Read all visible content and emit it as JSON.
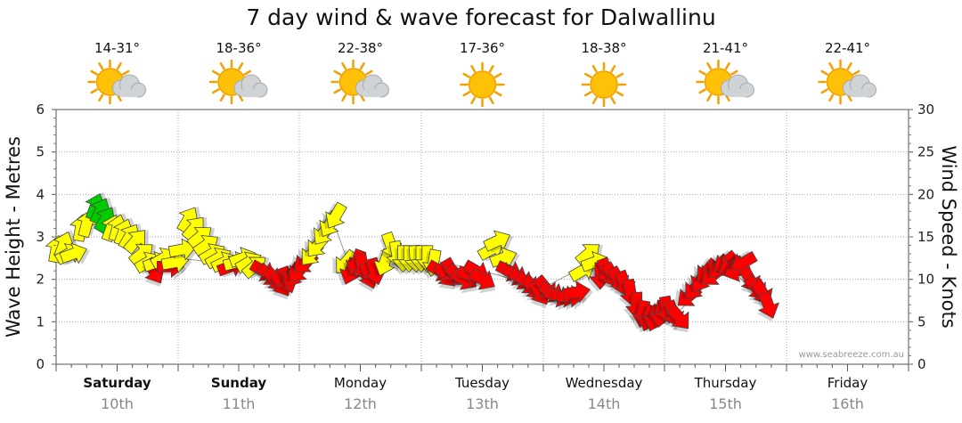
{
  "chart_data": {
    "type": "scatter",
    "title": "7 day wind & wave forecast for Dalwallinu",
    "ylabel_left": "Wave Height - Metres",
    "ylabel_right": "Wind Speed - Knots",
    "y_left_range": [
      0,
      6
    ],
    "y_left_ticks": [
      "0",
      "1",
      "2",
      "3",
      "4",
      "5",
      "6"
    ],
    "y_right_range": [
      0,
      30
    ],
    "y_right_ticks": [
      "0",
      "5",
      "10",
      "15",
      "20",
      "25",
      "30"
    ],
    "grid": true,
    "watermark": "www.seabreeze.com.au",
    "days": [
      {
        "name": "Saturday",
        "date": "10th",
        "bold": true,
        "temp": "14-31°",
        "weather": "partly-cloudy"
      },
      {
        "name": "Sunday",
        "date": "11th",
        "bold": true,
        "temp": "18-36°",
        "weather": "partly-cloudy"
      },
      {
        "name": "Monday",
        "date": "12th",
        "bold": false,
        "temp": "22-38°",
        "weather": "partly-cloudy"
      },
      {
        "name": "Tuesday",
        "date": "13th",
        "bold": false,
        "temp": "17-36°",
        "weather": "sunny"
      },
      {
        "name": "Wednesday",
        "date": "14th",
        "bold": false,
        "temp": "18-38°",
        "weather": "sunny"
      },
      {
        "name": "Thursday",
        "date": "15th",
        "bold": false,
        "temp": "21-41°",
        "weather": "partly-cloudy"
      },
      {
        "name": "Friday",
        "date": "16th",
        "bold": false,
        "temp": "22-41°",
        "weather": "partly-cloudy"
      }
    ],
    "wind_legend": {
      "light": "#ffff00",
      "moderate": "#00cc00",
      "strong": "#ff0000"
    },
    "wind_series": [
      {
        "t": 0.0,
        "kn": 13.5,
        "dir": 190,
        "c": "yellow"
      },
      {
        "t": 0.06,
        "kn": 14.0,
        "dir": 200,
        "c": "yellow"
      },
      {
        "t": 0.1,
        "kn": 13.0,
        "dir": 240,
        "c": "yellow"
      },
      {
        "t": 0.14,
        "kn": 13.0,
        "dir": 250,
        "c": "yellow"
      },
      {
        "t": 0.2,
        "kn": 16.0,
        "dir": 190,
        "c": "yellow"
      },
      {
        "t": 0.25,
        "kn": 16.5,
        "dir": 195,
        "c": "yellow"
      },
      {
        "t": 0.32,
        "kn": 18.5,
        "dir": 200,
        "c": "green"
      },
      {
        "t": 0.36,
        "kn": 18.0,
        "dir": 205,
        "c": "green"
      },
      {
        "t": 0.4,
        "kn": 17.0,
        "dir": 210,
        "c": "green"
      },
      {
        "t": 0.45,
        "kn": 16.0,
        "dir": 200,
        "c": "yellow"
      },
      {
        "t": 0.5,
        "kn": 16.0,
        "dir": 195,
        "c": "yellow"
      },
      {
        "t": 0.55,
        "kn": 15.5,
        "dir": 200,
        "c": "yellow"
      },
      {
        "t": 0.6,
        "kn": 15.0,
        "dir": 210,
        "c": "yellow"
      },
      {
        "t": 0.65,
        "kn": 14.5,
        "dir": 220,
        "c": "yellow"
      },
      {
        "t": 0.7,
        "kn": 13.0,
        "dir": 230,
        "c": "yellow"
      },
      {
        "t": 0.75,
        "kn": 12.0,
        "dir": 240,
        "c": "yellow"
      },
      {
        "t": 0.8,
        "kn": 11.0,
        "dir": 330,
        "c": "red"
      },
      {
        "t": 0.82,
        "kn": 12.0,
        "dir": 250,
        "c": "yellow"
      },
      {
        "t": 0.88,
        "kn": 12.5,
        "dir": 240,
        "c": "yellow"
      },
      {
        "t": 0.93,
        "kn": 11.5,
        "dir": 270,
        "c": "red"
      },
      {
        "t": 0.97,
        "kn": 12.0,
        "dir": 260,
        "c": "yellow"
      },
      {
        "t": 1.03,
        "kn": 13.5,
        "dir": 260,
        "c": "yellow"
      },
      {
        "t": 1.08,
        "kn": 17.0,
        "dir": 210,
        "c": "yellow"
      },
      {
        "t": 1.13,
        "kn": 16.0,
        "dir": 220,
        "c": "yellow"
      },
      {
        "t": 1.18,
        "kn": 15.0,
        "dir": 230,
        "c": "yellow"
      },
      {
        "t": 1.23,
        "kn": 14.0,
        "dir": 235,
        "c": "yellow"
      },
      {
        "t": 1.28,
        "kn": 13.0,
        "dir": 240,
        "c": "yellow"
      },
      {
        "t": 1.33,
        "kn": 12.5,
        "dir": 240,
        "c": "yellow"
      },
      {
        "t": 1.38,
        "kn": 12.0,
        "dir": 245,
        "c": "yellow"
      },
      {
        "t": 1.43,
        "kn": 11.5,
        "dir": 250,
        "c": "red"
      },
      {
        "t": 1.48,
        "kn": 12.0,
        "dir": 255,
        "c": "yellow"
      },
      {
        "t": 1.53,
        "kn": 12.5,
        "dir": 250,
        "c": "yellow"
      },
      {
        "t": 1.58,
        "kn": 12.0,
        "dir": 240,
        "c": "yellow"
      },
      {
        "t": 1.63,
        "kn": 11.5,
        "dir": 230,
        "c": "yellow"
      },
      {
        "t": 1.7,
        "kn": 11.0,
        "dir": 300,
        "c": "red"
      },
      {
        "t": 1.75,
        "kn": 10.5,
        "dir": 310,
        "c": "red"
      },
      {
        "t": 1.8,
        "kn": 10.0,
        "dir": 320,
        "c": "red"
      },
      {
        "t": 1.85,
        "kn": 9.5,
        "dir": 330,
        "c": "red"
      },
      {
        "t": 1.9,
        "kn": 10.0,
        "dir": 340,
        "c": "red"
      },
      {
        "t": 1.95,
        "kn": 10.5,
        "dir": 30,
        "c": "red"
      },
      {
        "t": 2.0,
        "kn": 11.0,
        "dir": 40,
        "c": "red"
      },
      {
        "t": 2.05,
        "kn": 12.0,
        "dir": 50,
        "c": "red"
      },
      {
        "t": 2.1,
        "kn": 13.0,
        "dir": 40,
        "c": "yellow"
      },
      {
        "t": 2.15,
        "kn": 14.0,
        "dir": 40,
        "c": "yellow"
      },
      {
        "t": 2.2,
        "kn": 15.5,
        "dir": 35,
        "c": "yellow"
      },
      {
        "t": 2.25,
        "kn": 16.5,
        "dir": 30,
        "c": "yellow"
      },
      {
        "t": 2.3,
        "kn": 17.5,
        "dir": 30,
        "c": "yellow"
      },
      {
        "t": 2.38,
        "kn": 12.0,
        "dir": 40,
        "c": "yellow"
      },
      {
        "t": 2.42,
        "kn": 11.0,
        "dir": 20,
        "c": "red"
      },
      {
        "t": 2.47,
        "kn": 12.0,
        "dir": 20,
        "c": "red"
      },
      {
        "t": 2.52,
        "kn": 11.5,
        "dir": 350,
        "c": "red"
      },
      {
        "t": 2.57,
        "kn": 10.5,
        "dir": 340,
        "c": "red"
      },
      {
        "t": 2.62,
        "kn": 11.0,
        "dir": 345,
        "c": "red"
      },
      {
        "t": 2.7,
        "kn": 12.0,
        "dir": 20,
        "c": "yellow"
      },
      {
        "t": 2.75,
        "kn": 14.0,
        "dir": 340,
        "c": "yellow"
      },
      {
        "t": 2.8,
        "kn": 13.0,
        "dir": 350,
        "c": "yellow"
      },
      {
        "t": 2.85,
        "kn": 12.5,
        "dir": 0,
        "c": "yellow"
      },
      {
        "t": 2.9,
        "kn": 12.5,
        "dir": 0,
        "c": "yellow"
      },
      {
        "t": 2.95,
        "kn": 12.5,
        "dir": 355,
        "c": "yellow"
      },
      {
        "t": 3.0,
        "kn": 12.5,
        "dir": 0,
        "c": "yellow"
      },
      {
        "t": 3.05,
        "kn": 12.5,
        "dir": 0,
        "c": "yellow"
      },
      {
        "t": 3.1,
        "kn": 12.0,
        "dir": 10,
        "c": "yellow"
      },
      {
        "t": 3.15,
        "kn": 11.0,
        "dir": 300,
        "c": "red"
      },
      {
        "t": 3.2,
        "kn": 10.5,
        "dir": 320,
        "c": "red"
      },
      {
        "t": 3.25,
        "kn": 11.0,
        "dir": 330,
        "c": "red"
      },
      {
        "t": 3.3,
        "kn": 10.5,
        "dir": 310,
        "c": "red"
      },
      {
        "t": 3.35,
        "kn": 10.0,
        "dir": 300,
        "c": "red"
      },
      {
        "t": 3.4,
        "kn": 10.5,
        "dir": 290,
        "c": "red"
      },
      {
        "t": 3.45,
        "kn": 11.0,
        "dir": 300,
        "c": "red"
      },
      {
        "t": 3.5,
        "kn": 10.0,
        "dir": 300,
        "c": "red"
      },
      {
        "t": 3.57,
        "kn": 13.5,
        "dir": 240,
        "c": "yellow"
      },
      {
        "t": 3.62,
        "kn": 14.5,
        "dir": 245,
        "c": "yellow"
      },
      {
        "t": 3.67,
        "kn": 12.5,
        "dir": 250,
        "c": "yellow"
      },
      {
        "t": 3.72,
        "kn": 11.0,
        "dir": 295,
        "c": "red"
      },
      {
        "t": 3.77,
        "kn": 10.5,
        "dir": 300,
        "c": "red"
      },
      {
        "t": 3.82,
        "kn": 10.0,
        "dir": 305,
        "c": "red"
      },
      {
        "t": 3.87,
        "kn": 9.5,
        "dir": 310,
        "c": "red"
      },
      {
        "t": 3.92,
        "kn": 9.0,
        "dir": 320,
        "c": "red"
      },
      {
        "t": 3.97,
        "kn": 8.5,
        "dir": 330,
        "c": "red"
      },
      {
        "t": 4.02,
        "kn": 9.0,
        "dir": 320,
        "c": "red"
      },
      {
        "t": 4.07,
        "kn": 8.5,
        "dir": 300,
        "c": "red"
      },
      {
        "t": 4.12,
        "kn": 8.0,
        "dir": 290,
        "c": "red"
      },
      {
        "t": 4.17,
        "kn": 8.0,
        "dir": 280,
        "c": "red"
      },
      {
        "t": 4.22,
        "kn": 8.0,
        "dir": 270,
        "c": "red"
      },
      {
        "t": 4.27,
        "kn": 8.5,
        "dir": 260,
        "c": "red"
      },
      {
        "t": 4.32,
        "kn": 11.0,
        "dir": 240,
        "c": "yellow"
      },
      {
        "t": 4.37,
        "kn": 13.0,
        "dir": 230,
        "c": "yellow"
      },
      {
        "t": 4.42,
        "kn": 12.0,
        "dir": 250,
        "c": "yellow"
      },
      {
        "t": 4.47,
        "kn": 10.5,
        "dir": 0,
        "c": "red"
      },
      {
        "t": 4.52,
        "kn": 11.0,
        "dir": 340,
        "c": "red"
      },
      {
        "t": 4.57,
        "kn": 10.5,
        "dir": 330,
        "c": "red"
      },
      {
        "t": 4.62,
        "kn": 10.0,
        "dir": 330,
        "c": "red"
      },
      {
        "t": 4.67,
        "kn": 9.5,
        "dir": 340,
        "c": "red"
      },
      {
        "t": 4.72,
        "kn": 8.5,
        "dir": 350,
        "c": "red"
      },
      {
        "t": 4.77,
        "kn": 7.0,
        "dir": 0,
        "c": "red"
      },
      {
        "t": 4.82,
        "kn": 6.0,
        "dir": 10,
        "c": "red"
      },
      {
        "t": 4.87,
        "kn": 5.5,
        "dir": 20,
        "c": "red"
      },
      {
        "t": 4.92,
        "kn": 5.5,
        "dir": 20,
        "c": "red"
      },
      {
        "t": 4.97,
        "kn": 6.0,
        "dir": 10,
        "c": "red"
      },
      {
        "t": 5.02,
        "kn": 6.5,
        "dir": 350,
        "c": "red"
      },
      {
        "t": 5.07,
        "kn": 6.0,
        "dir": 340,
        "c": "red"
      },
      {
        "t": 5.12,
        "kn": 5.5,
        "dir": 320,
        "c": "red"
      },
      {
        "t": 5.2,
        "kn": 8.0,
        "dir": 50,
        "c": "red"
      },
      {
        "t": 5.25,
        "kn": 9.0,
        "dir": 40,
        "c": "red"
      },
      {
        "t": 5.3,
        "kn": 10.0,
        "dir": 30,
        "c": "red"
      },
      {
        "t": 5.35,
        "kn": 11.0,
        "dir": 40,
        "c": "red"
      },
      {
        "t": 5.4,
        "kn": 10.5,
        "dir": 50,
        "c": "red"
      },
      {
        "t": 5.45,
        "kn": 11.5,
        "dir": 40,
        "c": "red"
      },
      {
        "t": 5.5,
        "kn": 12.0,
        "dir": 50,
        "c": "red"
      },
      {
        "t": 5.55,
        "kn": 11.5,
        "dir": 60,
        "c": "red"
      },
      {
        "t": 5.6,
        "kn": 11.0,
        "dir": 70,
        "c": "red"
      },
      {
        "t": 5.65,
        "kn": 12.0,
        "dir": 60,
        "c": "red"
      },
      {
        "t": 5.7,
        "kn": 10.0,
        "dir": 330,
        "c": "red"
      },
      {
        "t": 5.75,
        "kn": 9.0,
        "dir": 320,
        "c": "red"
      },
      {
        "t": 5.8,
        "kn": 8.5,
        "dir": 330,
        "c": "red"
      },
      {
        "t": 5.85,
        "kn": 7.0,
        "dir": 340,
        "c": "red"
      }
    ],
    "wave_series": [
      {
        "t": 0.0,
        "m": 2.6
      },
      {
        "t": 0.25,
        "m": 3.1
      },
      {
        "t": 0.35,
        "m": 3.5
      },
      {
        "t": 0.5,
        "m": 3.0
      },
      {
        "t": 0.75,
        "m": 2.3
      },
      {
        "t": 1.0,
        "m": 2.5
      },
      {
        "t": 1.3,
        "m": 2.4
      },
      {
        "t": 1.7,
        "m": 2.1
      },
      {
        "t": 2.0,
        "m": 2.3
      },
      {
        "t": 2.3,
        "m": 3.2
      },
      {
        "t": 2.4,
        "m": 2.4
      },
      {
        "t": 2.7,
        "m": 2.3
      },
      {
        "t": 3.0,
        "m": 2.5
      },
      {
        "t": 3.5,
        "m": 2.2
      },
      {
        "t": 4.0,
        "m": 1.8
      },
      {
        "t": 4.4,
        "m": 2.4
      },
      {
        "t": 4.8,
        "m": 1.2
      },
      {
        "t": 5.1,
        "m": 1.2
      },
      {
        "t": 5.5,
        "m": 2.3
      },
      {
        "t": 5.85,
        "m": 1.5
      }
    ]
  }
}
